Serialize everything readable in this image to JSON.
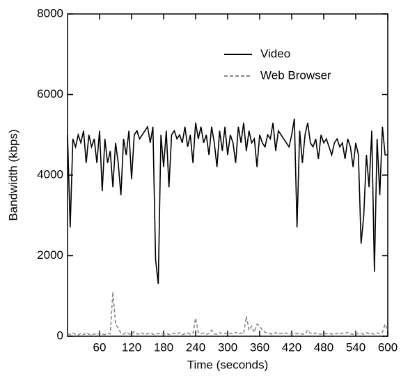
{
  "chart_data": {
    "type": "line",
    "xlabel": "Time (seconds)",
    "ylabel": "Bandwidth (kbps)",
    "x": [
      0,
      5,
      10,
      15,
      20,
      25,
      30,
      35,
      40,
      45,
      50,
      55,
      60,
      65,
      70,
      75,
      80,
      85,
      90,
      95,
      100,
      105,
      110,
      115,
      120,
      125,
      130,
      135,
      140,
      145,
      150,
      155,
      160,
      165,
      170,
      175,
      180,
      185,
      190,
      195,
      200,
      205,
      210,
      215,
      220,
      225,
      230,
      235,
      240,
      245,
      250,
      255,
      260,
      265,
      270,
      275,
      280,
      285,
      290,
      295,
      300,
      305,
      310,
      315,
      320,
      325,
      330,
      335,
      340,
      345,
      350,
      355,
      360,
      365,
      370,
      375,
      380,
      385,
      390,
      395,
      400,
      405,
      410,
      415,
      420,
      425,
      430,
      435,
      440,
      445,
      450,
      455,
      460,
      465,
      470,
      475,
      480,
      485,
      490,
      495,
      500,
      505,
      510,
      515,
      520,
      525,
      530,
      535,
      540,
      545,
      550,
      555,
      560,
      565,
      570,
      575,
      580,
      585,
      590,
      595,
      600
    ],
    "series": [
      {
        "name": "Video",
        "color": "#000000",
        "style": "solid",
        "values": [
          5000,
          2700,
          4900,
          4700,
          5000,
          4800,
          5100,
          4300,
          5000,
          4700,
          4900,
          4300,
          5100,
          3600,
          4900,
          4300,
          4600,
          3700,
          4800,
          4300,
          3500,
          4900,
          4500,
          5100,
          3900,
          5000,
          5100,
          4900,
          5000,
          5100,
          5200,
          4800,
          5200,
          1900,
          1300,
          5000,
          4200,
          5100,
          3700,
          5000,
          5100,
          4900,
          5000,
          4800,
          5200,
          4700,
          5000,
          4300,
          5300,
          4900,
          5200,
          4800,
          5000,
          4500,
          5200,
          4800,
          4200,
          5100,
          4600,
          5200,
          4500,
          5000,
          4800,
          4300,
          5200,
          4800,
          5300,
          4600,
          5100,
          4800,
          4900,
          4200,
          5000,
          4800,
          4700,
          5000,
          4900,
          5300,
          4600,
          5100,
          5000,
          4900,
          4800,
          4700,
          5000,
          5400,
          2700,
          5100,
          4300,
          5000,
          5300,
          4800,
          4700,
          4900,
          4400,
          5000,
          4800,
          4900,
          4700,
          4500,
          4800,
          4900,
          4700,
          4800,
          4400,
          4900,
          4700,
          4200,
          4800,
          4500,
          2300,
          3000,
          4500,
          3700,
          5100,
          1600,
          4900,
          3500,
          5200,
          4500,
          4500
        ]
      },
      {
        "name": "Web Browser",
        "color": "#888888",
        "style": "dashed",
        "values": [
          60,
          40,
          80,
          50,
          30,
          70,
          40,
          90,
          50,
          30,
          60,
          40,
          80,
          50,
          40,
          70,
          60,
          1100,
          300,
          200,
          80,
          50,
          100,
          60,
          40,
          120,
          60,
          50,
          80,
          40,
          60,
          90,
          50,
          40,
          70,
          60,
          50,
          80,
          40,
          60,
          70,
          50,
          90,
          40,
          60,
          80,
          50,
          70,
          450,
          100,
          60,
          80,
          50,
          70,
          150,
          60,
          50,
          90,
          60,
          80,
          50,
          70,
          60,
          100,
          50,
          80,
          60,
          500,
          150,
          250,
          100,
          300,
          250,
          150,
          100,
          80,
          60,
          50,
          90,
          60,
          70,
          50,
          80,
          60,
          50,
          70,
          60,
          80,
          50,
          60,
          150,
          70,
          50,
          80,
          60,
          50,
          70,
          60,
          80,
          50,
          60,
          70,
          50,
          80,
          60,
          100,
          60,
          50,
          80,
          60,
          70,
          50,
          90,
          60,
          70,
          50,
          80,
          60,
          100,
          300,
          150
        ]
      }
    ],
    "xlim": [
      0,
      600
    ],
    "xticks": [
      60,
      120,
      180,
      240,
      300,
      360,
      420,
      480,
      540,
      600
    ],
    "ylim": [
      0,
      8000
    ],
    "yticks": [
      0,
      2000,
      4000,
      6000,
      8000
    ],
    "legend": "upper right"
  }
}
